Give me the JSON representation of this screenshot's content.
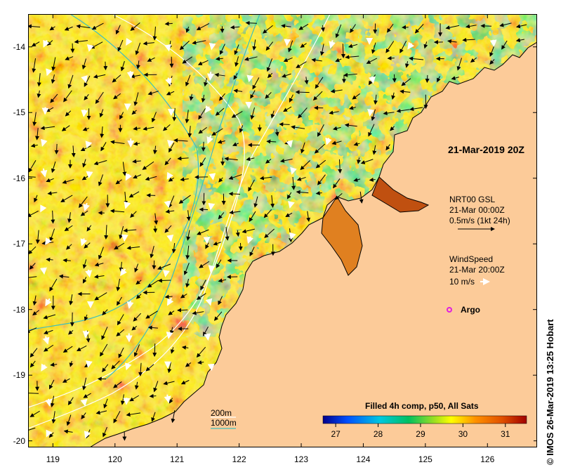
{
  "map": {
    "title": "21-Mar-2019 20Z",
    "lat_ticks": [
      "-14",
      "-15",
      "-16",
      "-17",
      "-18",
      "-19",
      "-20"
    ],
    "lon_ticks": [
      "119",
      "120",
      "121",
      "122",
      "123",
      "124",
      "125",
      "126"
    ],
    "lat_range": [
      -20.1,
      -13.5
    ],
    "lon_range": [
      118.6,
      126.8
    ],
    "colors": {
      "land": "#fccb99",
      "coast": "#000000",
      "current_arrow": "#000000",
      "wind_arrow": "#ffffff",
      "isobath_200m": "#ffffff",
      "isobath_1000m": "#3fbfbf",
      "argo_marker": "#e020e0"
    }
  },
  "legend": {
    "currents": {
      "source": "NRT00 GSL",
      "time": "21-Mar 00:00Z",
      "scale": "0.5m/s (1kt 24h)"
    },
    "wind": {
      "title": "WindSpeed",
      "time": "21-Mar 20:00Z",
      "scale": "10 m/s"
    },
    "argo": "Argo",
    "isobaths": {
      "shallow": "200m",
      "deep": "1000m"
    }
  },
  "colorbar": {
    "title": "Filled 4h comp, p50, All Sats",
    "ticks": [
      "27",
      "28",
      "29",
      "30",
      "31"
    ],
    "range": [
      26.7,
      31.5
    ],
    "colors": [
      "#00008b",
      "#0050ff",
      "#00c8e0",
      "#00c060",
      "#a0e020",
      "#ffff00",
      "#ff9000",
      "#e05000",
      "#a00000"
    ]
  },
  "credit": "IMOS 26-Mar-2019 13:25 Hobart"
}
